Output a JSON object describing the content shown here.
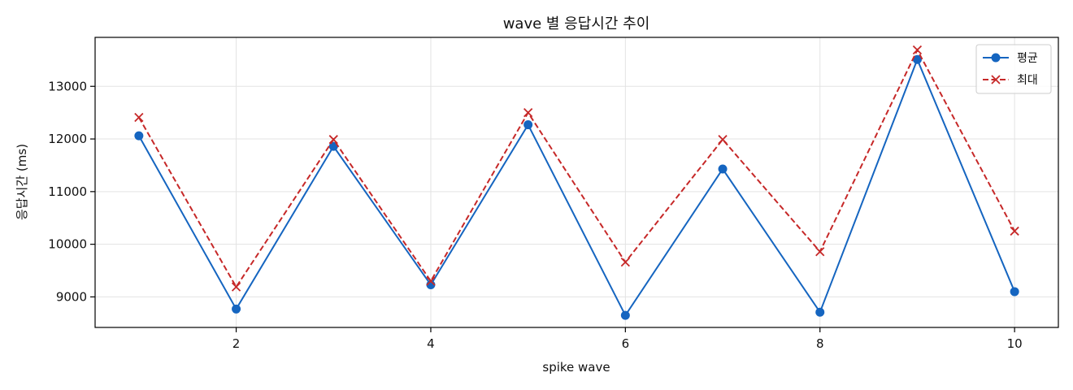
{
  "chart_data": {
    "type": "line",
    "title": "wave 별 응답시간 추이",
    "xlabel": "spike wave",
    "ylabel": "응답시간 (ms)",
    "x": [
      1,
      2,
      3,
      4,
      5,
      6,
      7,
      8,
      9,
      10
    ],
    "xlim": [
      0.55,
      10.45
    ],
    "ylim": [
      8420,
      13930
    ],
    "xticks": [
      2,
      4,
      6,
      8,
      10
    ],
    "yticks": [
      9000,
      10000,
      11000,
      12000,
      13000
    ],
    "grid": true,
    "legend_position": "top-right",
    "series": [
      {
        "name": "평균",
        "color": "#1565c0",
        "line_style": "solid",
        "marker": "circle",
        "values": [
          12060,
          8770,
          11860,
          9230,
          12270,
          8650,
          11430,
          8710,
          13510,
          9100
        ]
      },
      {
        "name": "최대",
        "color": "#c62828",
        "line_style": "dashed",
        "marker": "x",
        "values": [
          12410,
          9190,
          11990,
          9300,
          12500,
          9660,
          11990,
          9860,
          13690,
          10250
        ]
      }
    ]
  }
}
